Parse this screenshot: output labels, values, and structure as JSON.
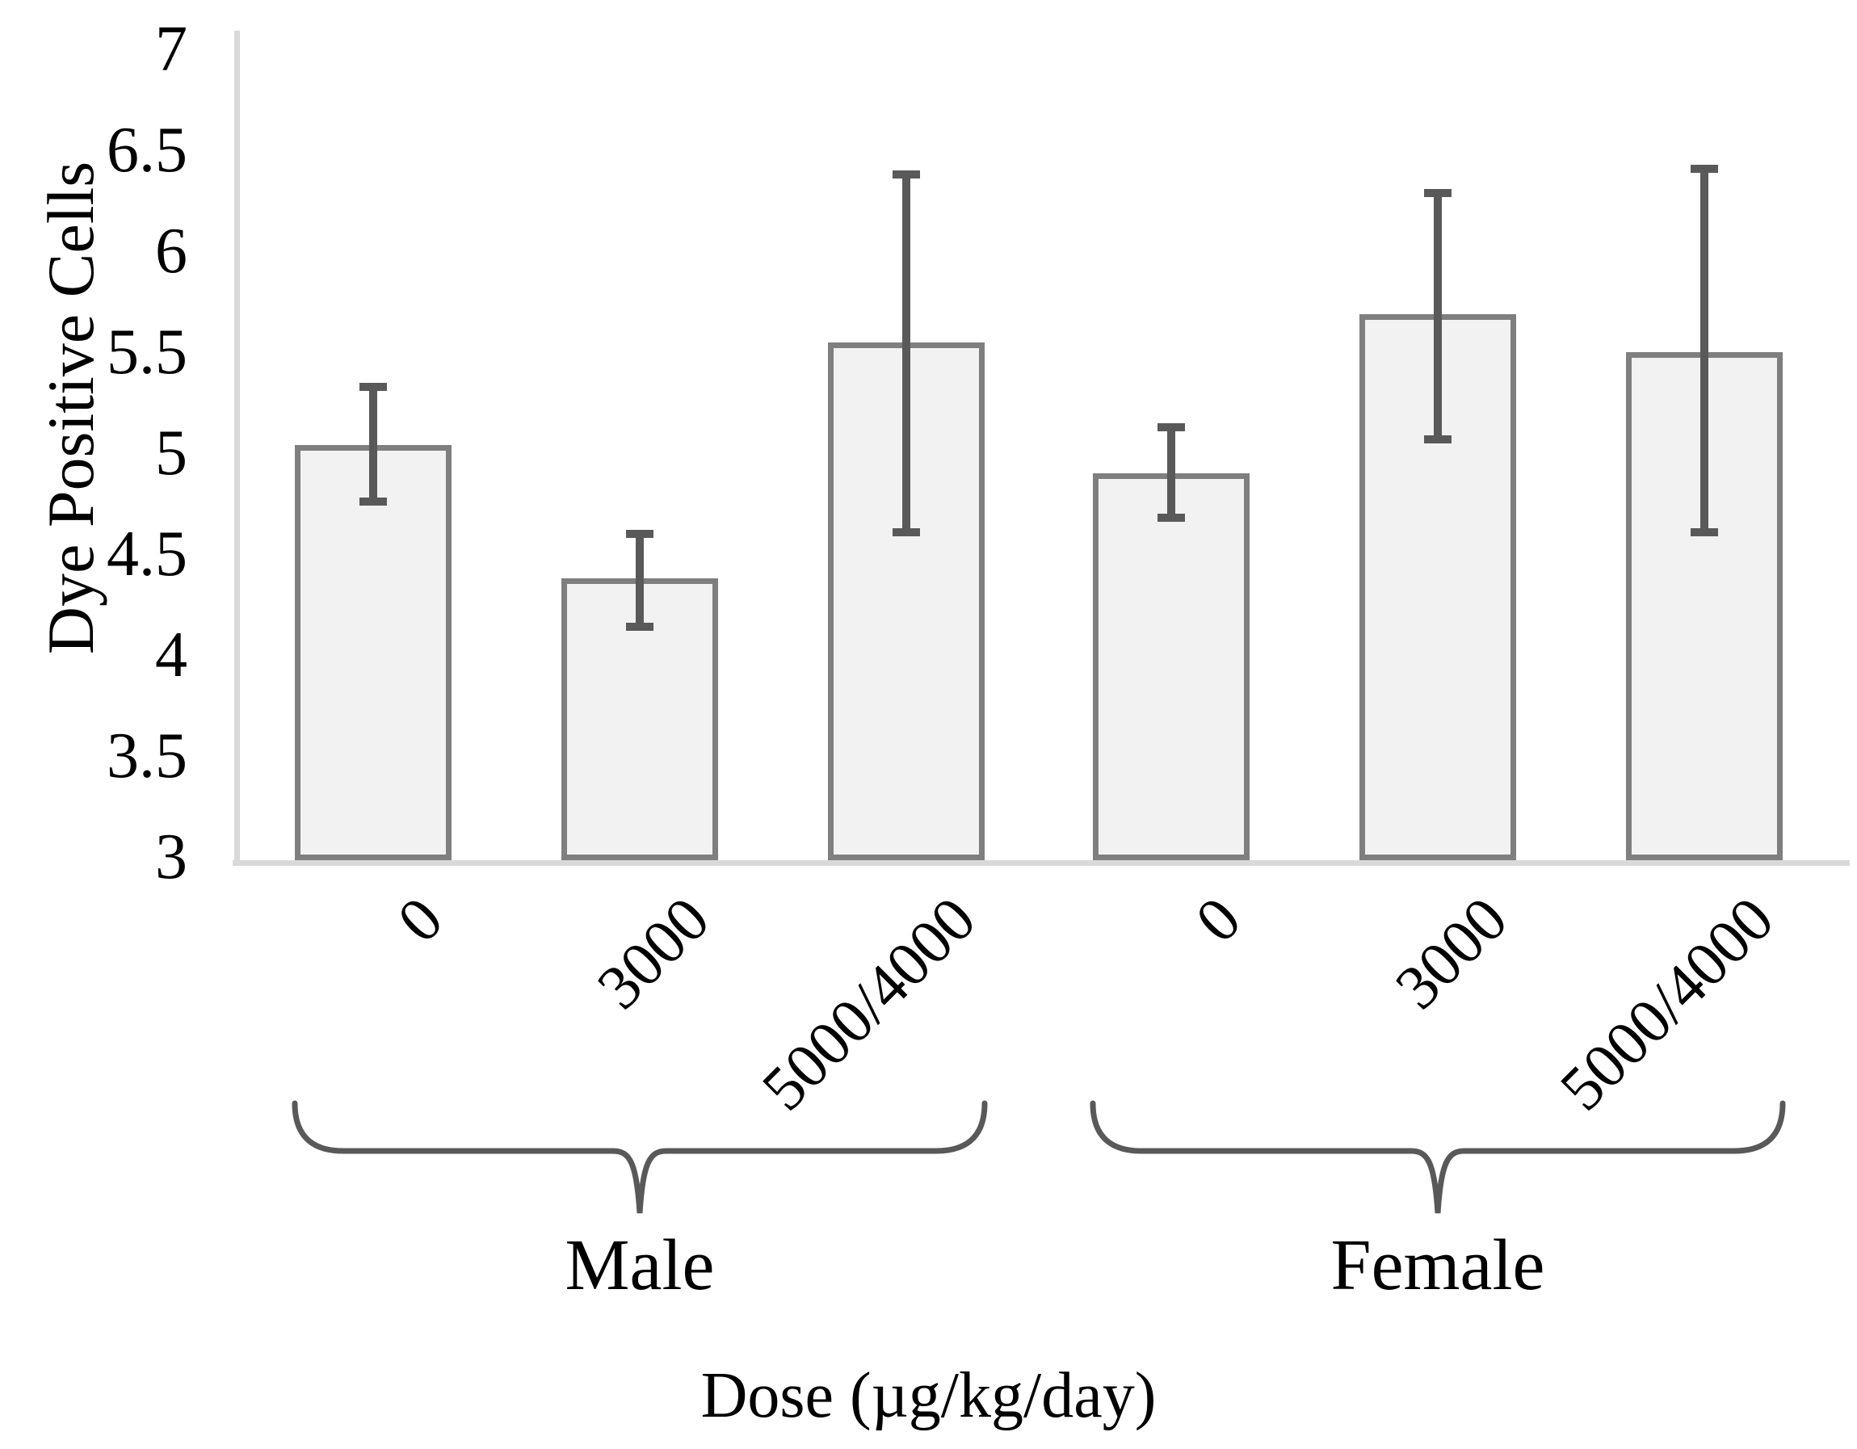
{
  "chart_data": {
    "type": "bar",
    "title": "",
    "ylabel": "Dye Positive Cells",
    "xlabel": "Dose (µg/kg/day)",
    "ylim": [
      3,
      7
    ],
    "y_tick_step": 0.5,
    "y_ticks": [
      "7",
      "6.5",
      "6",
      "5.5",
      "5",
      "4.5",
      "4",
      "3.5",
      "3"
    ],
    "grid": false,
    "legend": false,
    "bar_style": "outlined light gray bars with dark gray error bars",
    "groups": [
      {
        "label": "Male",
        "categories": [
          "0",
          "3000",
          "5000/4000"
        ],
        "values": [
          5.04,
          4.38,
          5.55
        ],
        "err_low": [
          4.76,
          4.14,
          4.61
        ],
        "err_high": [
          5.33,
          4.6,
          6.38
        ]
      },
      {
        "label": "Female",
        "categories": [
          "0",
          "3000",
          "5000/4000"
        ],
        "values": [
          4.9,
          5.69,
          5.5
        ],
        "err_low": [
          4.68,
          5.07,
          4.61
        ],
        "err_high": [
          5.13,
          6.29,
          6.41
        ]
      }
    ]
  },
  "colors": {
    "axis_line": "#d9d9d9",
    "bar_fill": "#f2f2f2",
    "bar_border": "#7f7f7f",
    "error_bar": "#595959",
    "brace": "#595959",
    "text": "#000000",
    "background": "#ffffff"
  }
}
